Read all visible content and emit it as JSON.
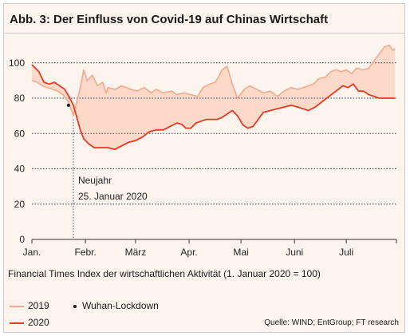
{
  "title": "Abb. 3: Der Einfluss von Covid-19 auf Chinas Wirtschaft",
  "subtitle": "Financial Times Index der wirtschaftlichen Aktivität (1. Januar 2020 = 100)",
  "source": "Quelle: WIND; EntGroup; FT research",
  "colors": {
    "background": "#fdf4ee",
    "series_2019": "#f3a98d",
    "series_2020": "#e53a25",
    "band": "#fcd9c9",
    "grid": "#1e3a64"
  },
  "legend": {
    "series_2019": "2019",
    "series_2020": "2020",
    "lockdown": "Wuhan-Lockdown"
  },
  "chart_data": {
    "type": "line",
    "ylim": [
      0,
      113
    ],
    "y_ticks": [
      0,
      20,
      40,
      60,
      80,
      100
    ],
    "x_range_days": [
      0,
      211
    ],
    "x_tick_labels": [
      {
        "label": "Jan.",
        "day": 0
      },
      {
        "label": "Febr.",
        "day": 31
      },
      {
        "label": "März",
        "day": 60
      },
      {
        "label": "Apr.",
        "day": 91
      },
      {
        "label": "Mai",
        "day": 121
      },
      {
        "label": "Juni",
        "day": 152
      },
      {
        "label": "Juli",
        "day": 182
      }
    ],
    "annotation": {
      "day": 24,
      "text_line1": "Neujahr",
      "text_line2": "25. Januar 2020",
      "lockdown_day": 23,
      "lockdown_value": 76
    },
    "series": [
      {
        "name": "2019",
        "points": [
          [
            0,
            90
          ],
          [
            3,
            89
          ],
          [
            6,
            87
          ],
          [
            9,
            86
          ],
          [
            12,
            85
          ],
          [
            15,
            84
          ],
          [
            18,
            82
          ],
          [
            21,
            78
          ],
          [
            24,
            70
          ],
          [
            26,
            78
          ],
          [
            28,
            86
          ],
          [
            30,
            96
          ],
          [
            32,
            90
          ],
          [
            35,
            93
          ],
          [
            38,
            87
          ],
          [
            41,
            89
          ],
          [
            43,
            83
          ],
          [
            44,
            86
          ],
          [
            48,
            85
          ],
          [
            52,
            87
          ],
          [
            57,
            85
          ],
          [
            61,
            84
          ],
          [
            65,
            86
          ],
          [
            69,
            83
          ],
          [
            72,
            85
          ],
          [
            76,
            83
          ],
          [
            81,
            84
          ],
          [
            84,
            82
          ],
          [
            88,
            83
          ],
          [
            92,
            82
          ],
          [
            96,
            81
          ],
          [
            99,
            86
          ],
          [
            103,
            88
          ],
          [
            106,
            89
          ],
          [
            108,
            92
          ],
          [
            110,
            96
          ],
          [
            113,
            98
          ],
          [
            116,
            88
          ],
          [
            119,
            80
          ],
          [
            123,
            85
          ],
          [
            126,
            87
          ],
          [
            130,
            85
          ],
          [
            134,
            83
          ],
          [
            138,
            84
          ],
          [
            142,
            81
          ],
          [
            146,
            84
          ],
          [
            150,
            86
          ],
          [
            154,
            85
          ],
          [
            157,
            86
          ],
          [
            160,
            87
          ],
          [
            163,
            88
          ],
          [
            166,
            91
          ],
          [
            170,
            92
          ],
          [
            173,
            95
          ],
          [
            176,
            96
          ],
          [
            179,
            95
          ],
          [
            182,
            96
          ],
          [
            185,
            94
          ],
          [
            188,
            97
          ],
          [
            192,
            96
          ],
          [
            195,
            97
          ],
          [
            198,
            101
          ],
          [
            201,
            105
          ],
          [
            204,
            109
          ],
          [
            207,
            110
          ],
          [
            209,
            107
          ],
          [
            210,
            108
          ]
        ]
      },
      {
        "name": "2020",
        "points": [
          [
            0,
            99
          ],
          [
            4,
            95
          ],
          [
            7,
            89
          ],
          [
            10,
            88
          ],
          [
            13,
            89
          ],
          [
            16,
            87
          ],
          [
            19,
            85
          ],
          [
            22,
            80
          ],
          [
            24,
            76
          ],
          [
            26,
            69
          ],
          [
            28,
            62
          ],
          [
            30,
            57
          ],
          [
            33,
            54
          ],
          [
            36,
            52
          ],
          [
            40,
            52
          ],
          [
            44,
            52
          ],
          [
            48,
            51
          ],
          [
            52,
            53
          ],
          [
            56,
            55
          ],
          [
            60,
            56
          ],
          [
            64,
            58
          ],
          [
            68,
            61
          ],
          [
            72,
            62
          ],
          [
            76,
            62
          ],
          [
            80,
            64
          ],
          [
            84,
            66
          ],
          [
            87,
            65
          ],
          [
            89,
            63
          ],
          [
            92,
            63
          ],
          [
            95,
            66
          ],
          [
            98,
            67
          ],
          [
            101,
            68
          ],
          [
            104,
            68
          ],
          [
            107,
            68
          ],
          [
            110,
            69
          ],
          [
            113,
            71
          ],
          [
            116,
            73
          ],
          [
            119,
            70
          ],
          [
            122,
            65
          ],
          [
            125,
            63
          ],
          [
            128,
            64
          ],
          [
            131,
            68
          ],
          [
            134,
            72
          ],
          [
            138,
            73
          ],
          [
            142,
            74
          ],
          [
            146,
            75
          ],
          [
            150,
            76
          ],
          [
            154,
            75
          ],
          [
            157,
            74
          ],
          [
            160,
            73
          ],
          [
            164,
            75
          ],
          [
            168,
            78
          ],
          [
            172,
            81
          ],
          [
            176,
            84
          ],
          [
            180,
            87
          ],
          [
            183,
            86
          ],
          [
            186,
            88
          ],
          [
            189,
            84
          ],
          [
            192,
            84
          ],
          [
            195,
            82
          ],
          [
            198,
            81
          ],
          [
            201,
            80
          ],
          [
            204,
            80
          ],
          [
            207,
            80
          ],
          [
            210,
            80
          ]
        ]
      }
    ]
  }
}
